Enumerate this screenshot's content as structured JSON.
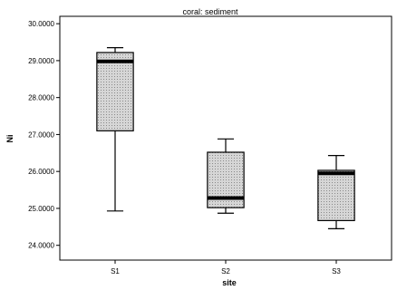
{
  "chart_data": {
    "type": "boxplot",
    "title": "coral: sediment",
    "xlabel": "site",
    "ylabel": "Ni",
    "ylim": [
      23.6,
      30.2
    ],
    "y_ticks": [
      "24.0000",
      "25.0000",
      "26.0000",
      "27.0000",
      "28.0000",
      "29.0000",
      "30.0000"
    ],
    "y_tick_values": [
      24,
      25,
      26,
      27,
      28,
      29,
      30
    ],
    "categories": [
      "S1",
      "S2",
      "S3"
    ],
    "boxes": [
      {
        "category": "S1",
        "min": 24.93,
        "q1": 27.1,
        "median": 28.98,
        "q3": 29.22,
        "max": 29.35
      },
      {
        "category": "S2",
        "min": 24.87,
        "q1": 25.02,
        "median": 25.28,
        "q3": 26.52,
        "max": 26.88
      },
      {
        "category": "S3",
        "min": 24.45,
        "q1": 24.67,
        "median": 25.95,
        "q3": 26.03,
        "max": 26.43
      }
    ],
    "grid": false,
    "colors": {
      "box_fill": "#d6d6d6",
      "stroke": "#000000",
      "background": "#ffffff"
    }
  }
}
